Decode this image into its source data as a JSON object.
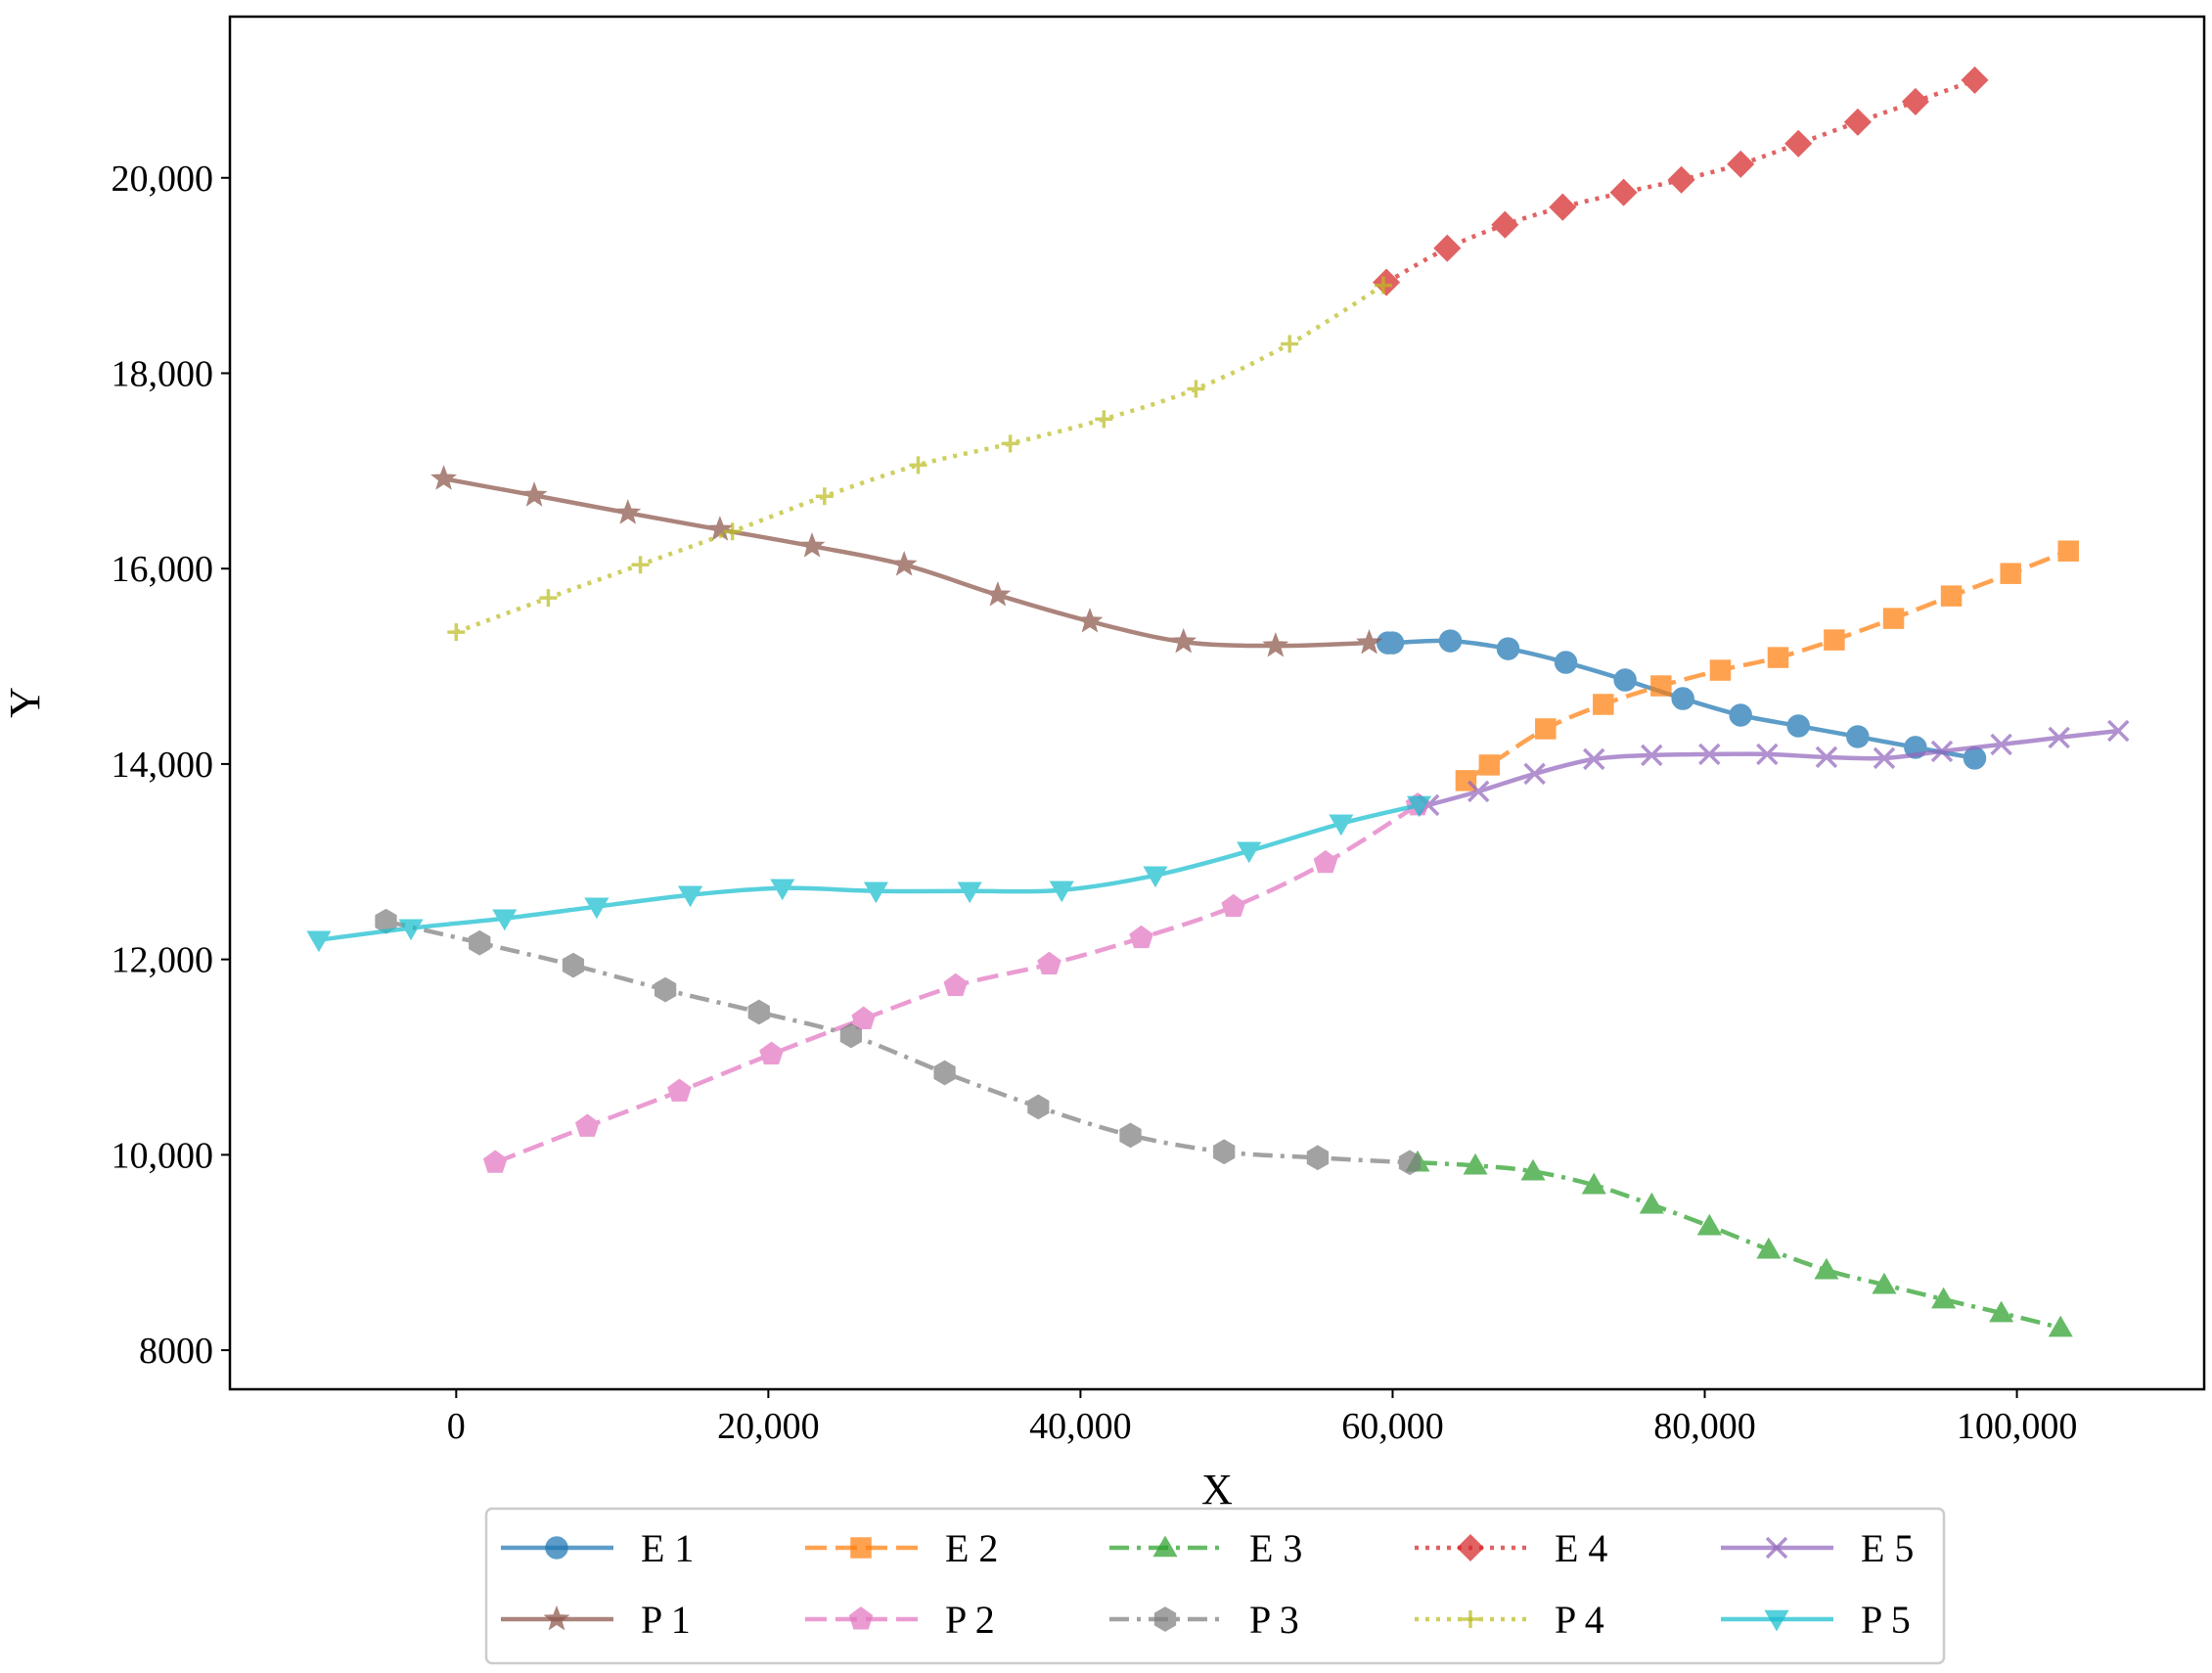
{
  "chart_data": {
    "type": "line",
    "title": "",
    "xlabel": "X",
    "ylabel": "Y",
    "xlim": [
      -14500,
      112000
    ],
    "ylim": [
      7600,
      21650
    ],
    "xticks": [
      0,
      20000,
      40000,
      60000,
      80000,
      100000
    ],
    "xtick_labels": [
      "0",
      "20,000",
      "40,000",
      "60,000",
      "80,000",
      "100,000"
    ],
    "yticks": [
      8000,
      10000,
      12000,
      14000,
      16000,
      18000,
      20000
    ],
    "ytick_labels": [
      "8000",
      "10,000",
      "12,000",
      "14,000",
      "16,000",
      "18,000",
      "20,000"
    ],
    "grid": false,
    "legend_position": "bottom-center",
    "series": [
      {
        "name": "E 1",
        "color": "#1f77b4",
        "dash": "solid",
        "marker": "circle",
        "points": [
          [
            59700,
            15240
          ],
          [
            60000,
            15240
          ],
          [
            63700,
            15260
          ],
          [
            67400,
            15180
          ],
          [
            71100,
            15040
          ],
          [
            74900,
            14860
          ],
          [
            78600,
            14670
          ],
          [
            82300,
            14500
          ],
          [
            86000,
            14390
          ],
          [
            89800,
            14280
          ],
          [
            93500,
            14170
          ],
          [
            97300,
            14060
          ]
        ]
      },
      {
        "name": "E 2",
        "color": "#ff7f0e",
        "dash": "dashed",
        "marker": "square",
        "points": [
          [
            64700,
            13830
          ],
          [
            66200,
            13990
          ],
          [
            69800,
            14360
          ],
          [
            73500,
            14610
          ],
          [
            77200,
            14800
          ],
          [
            81000,
            14960
          ],
          [
            84700,
            15090
          ],
          [
            88300,
            15270
          ],
          [
            92100,
            15490
          ],
          [
            95800,
            15720
          ],
          [
            99600,
            15950
          ],
          [
            103300,
            16180
          ]
        ]
      },
      {
        "name": "E 3",
        "color": "#2ca02c",
        "dash": "dashdot",
        "marker": "triangle-up",
        "points": [
          [
            61600,
            9920
          ],
          [
            65300,
            9890
          ],
          [
            69000,
            9830
          ],
          [
            72900,
            9690
          ],
          [
            76600,
            9490
          ],
          [
            80300,
            9270
          ],
          [
            84100,
            9030
          ],
          [
            87800,
            8820
          ],
          [
            91500,
            8670
          ],
          [
            95300,
            8520
          ],
          [
            99000,
            8380
          ],
          [
            102800,
            8230
          ]
        ]
      },
      {
        "name": "E 4",
        "color": "#d62728",
        "dash": "dotted",
        "marker": "diamond",
        "points": [
          [
            59600,
            18930
          ],
          [
            63500,
            19280
          ],
          [
            67200,
            19520
          ],
          [
            70900,
            19700
          ],
          [
            74800,
            19850
          ],
          [
            78500,
            19980
          ],
          [
            82300,
            20140
          ],
          [
            86000,
            20350
          ],
          [
            89800,
            20570
          ],
          [
            93500,
            20780
          ],
          [
            97300,
            21000
          ]
        ]
      },
      {
        "name": "E 5",
        "color": "#9467bd",
        "dash": "solid",
        "marker": "x",
        "points": [
          [
            62300,
            13580
          ],
          [
            65500,
            13720
          ],
          [
            69100,
            13900
          ],
          [
            72900,
            14050
          ],
          [
            76600,
            14090
          ],
          [
            80300,
            14100
          ],
          [
            84000,
            14100
          ],
          [
            87800,
            14070
          ],
          [
            91500,
            14060
          ],
          [
            95200,
            14130
          ],
          [
            99000,
            14200
          ],
          [
            102700,
            14270
          ],
          [
            106500,
            14340
          ]
        ]
      },
      {
        "name": "P 1",
        "color": "#8c564b",
        "dash": "solid",
        "marker": "star",
        "points": [
          [
            -800,
            16920
          ],
          [
            5000,
            16750
          ],
          [
            11000,
            16570
          ],
          [
            16900,
            16400
          ],
          [
            22800,
            16230
          ],
          [
            28700,
            16040
          ],
          [
            34700,
            15730
          ],
          [
            40600,
            15460
          ],
          [
            46600,
            15250
          ],
          [
            52500,
            15210
          ],
          [
            58500,
            15240
          ]
        ]
      },
      {
        "name": "P 2",
        "color": "#e377c2",
        "dash": "dashed",
        "marker": "pentagon",
        "points": [
          [
            2500,
            9920
          ],
          [
            8400,
            10290
          ],
          [
            14300,
            10650
          ],
          [
            20200,
            11030
          ],
          [
            26100,
            11390
          ],
          [
            32000,
            11730
          ],
          [
            38000,
            11950
          ],
          [
            43900,
            12220
          ],
          [
            49800,
            12540
          ],
          [
            55700,
            12990
          ],
          [
            61600,
            13580
          ]
        ]
      },
      {
        "name": "P 3",
        "color": "#7f7f7f",
        "dash": "dashdot",
        "marker": "hexagon",
        "points": [
          [
            -4500,
            12390
          ],
          [
            1500,
            12170
          ],
          [
            7500,
            11940
          ],
          [
            13400,
            11690
          ],
          [
            19400,
            11460
          ],
          [
            25300,
            11220
          ],
          [
            31300,
            10840
          ],
          [
            37300,
            10490
          ],
          [
            43200,
            10200
          ],
          [
            49200,
            10030
          ],
          [
            55200,
            9970
          ],
          [
            61100,
            9920
          ]
        ]
      },
      {
        "name": "P 4",
        "color": "#bcbd22",
        "dash": "dotted",
        "marker": "plus",
        "points": [
          [
            0,
            15350
          ],
          [
            5900,
            15700
          ],
          [
            11800,
            16040
          ],
          [
            17700,
            16380
          ],
          [
            23600,
            16740
          ],
          [
            29600,
            17060
          ],
          [
            35500,
            17280
          ],
          [
            41500,
            17530
          ],
          [
            47400,
            17840
          ],
          [
            53400,
            18300
          ],
          [
            59400,
            18900
          ]
        ]
      },
      {
        "name": "P 5",
        "color": "#17becf",
        "dash": "solid",
        "marker": "triangle-down",
        "points": [
          [
            -8800,
            12200
          ],
          [
            -2900,
            12320
          ],
          [
            3100,
            12420
          ],
          [
            9000,
            12540
          ],
          [
            15000,
            12660
          ],
          [
            20900,
            12730
          ],
          [
            26900,
            12700
          ],
          [
            32900,
            12700
          ],
          [
            38800,
            12710
          ],
          [
            44800,
            12860
          ],
          [
            50800,
            13110
          ],
          [
            56700,
            13390
          ],
          [
            61700,
            13580
          ]
        ]
      }
    ],
    "legend": [
      [
        "E 1",
        "E 2",
        "E 3",
        "E 4",
        "E 5"
      ],
      [
        "P 1",
        "P 2",
        "P 3",
        "P 4",
        "P 5"
      ]
    ]
  }
}
